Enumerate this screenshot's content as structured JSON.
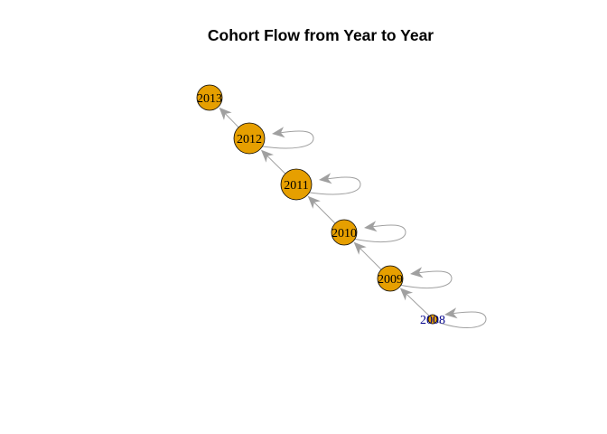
{
  "title": "Cohort Flow from Year to Year",
  "colors": {
    "node_fill": "#E69F00",
    "node_stroke": "#000000",
    "edge": "#A0A0A0",
    "arrow": "#A0A0A0",
    "label": "#000000",
    "label_small": "#00008B"
  },
  "nodes": [
    {
      "id": "2008",
      "label": "2008",
      "size": "small"
    },
    {
      "id": "2009",
      "label": "2009",
      "size": "medium"
    },
    {
      "id": "2010",
      "label": "2010",
      "size": "medium"
    },
    {
      "id": "2011",
      "label": "2011",
      "size": "large"
    },
    {
      "id": "2012",
      "label": "2012",
      "size": "large"
    },
    {
      "id": "2013",
      "label": "2013",
      "size": "medium"
    }
  ],
  "edges": [
    {
      "from": "2008",
      "to": "2009"
    },
    {
      "from": "2009",
      "to": "2010"
    },
    {
      "from": "2010",
      "to": "2011"
    },
    {
      "from": "2011",
      "to": "2012"
    },
    {
      "from": "2012",
      "to": "2013"
    }
  ],
  "self_loops": [
    "2008",
    "2009",
    "2010",
    "2011",
    "2012"
  ]
}
